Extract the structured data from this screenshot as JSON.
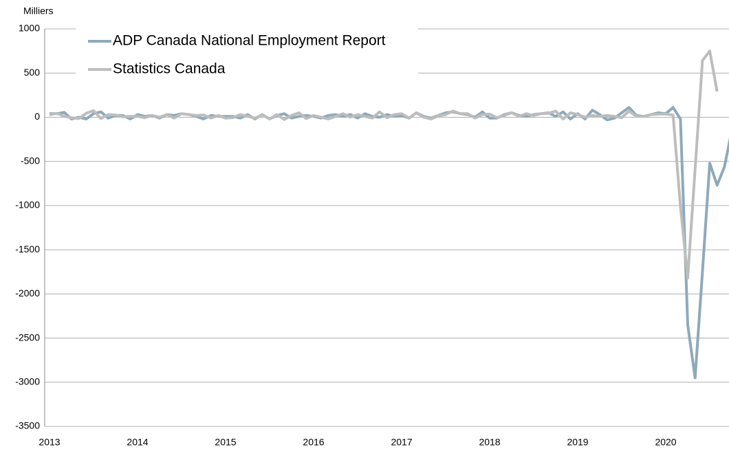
{
  "chart_data": {
    "type": "line",
    "y_label": "Milliers",
    "categories": [
      "2013",
      null,
      null,
      null,
      null,
      null,
      null,
      null,
      null,
      null,
      null,
      null,
      "2014",
      null,
      null,
      null,
      null,
      null,
      null,
      null,
      null,
      null,
      null,
      null,
      "2015",
      null,
      null,
      null,
      null,
      null,
      null,
      null,
      null,
      null,
      null,
      null,
      "2016",
      null,
      null,
      null,
      null,
      null,
      null,
      null,
      null,
      null,
      null,
      null,
      "2017",
      null,
      null,
      null,
      null,
      null,
      null,
      null,
      null,
      null,
      null,
      null,
      "2018",
      null,
      null,
      null,
      null,
      null,
      null,
      null,
      null,
      null,
      null,
      null,
      "2019",
      null,
      null,
      null,
      null,
      null,
      null,
      null,
      null,
      null,
      null,
      null,
      "2020",
      null,
      null,
      null,
      null,
      null,
      null,
      null,
      null,
      null
    ],
    "series": [
      {
        "name": "ADP Canada National Employment Report",
        "color": "#8eaab9",
        "values": [
          40,
          40,
          55,
          -20,
          0,
          -20,
          40,
          60,
          -10,
          20,
          20,
          -20,
          30,
          10,
          20,
          -10,
          30,
          20,
          40,
          30,
          10,
          -20,
          20,
          10,
          10,
          10,
          -10,
          30,
          -20,
          30,
          -20,
          20,
          40,
          -10,
          10,
          20,
          10,
          -10,
          20,
          30,
          10,
          30,
          -10,
          40,
          10,
          0,
          30,
          10,
          20,
          -10,
          50,
          10,
          -10,
          20,
          50,
          60,
          40,
          30,
          0,
          60,
          -10,
          -10,
          30,
          50,
          20,
          10,
          30,
          40,
          50,
          10,
          60,
          -20,
          40,
          -20,
          80,
          30,
          -30,
          -10,
          50,
          110,
          20,
          10,
          30,
          50,
          40,
          110,
          -20,
          -2350,
          -2950,
          -1750,
          -520,
          -770,
          -560,
          -150
        ]
      },
      {
        "name": "Statistics Canada",
        "color": "#bdbdbd",
        "values": [
          25,
          45,
          10,
          -5,
          -15,
          45,
          75,
          -15,
          30,
          25,
          5,
          10,
          10,
          -5,
          20,
          0,
          30,
          -10,
          40,
          30,
          20,
          25,
          -10,
          20,
          -10,
          -5,
          30,
          10,
          -10,
          25,
          -20,
          30,
          -25,
          20,
          50,
          -15,
          20,
          0,
          -20,
          10,
          40,
          0,
          30,
          10,
          -10,
          60,
          -5,
          30,
          40,
          -10,
          50,
          0,
          -20,
          15,
          30,
          70,
          40,
          40,
          -10,
          30,
          35,
          -5,
          20,
          50,
          10,
          40,
          20,
          40,
          45,
          70,
          -20,
          50,
          30,
          0,
          20,
          10,
          20,
          10,
          -5,
          70,
          10,
          10,
          30,
          35,
          35,
          25,
          -1010,
          -1820,
          -590,
          640,
          750,
          290,
          null,
          null
        ]
      }
    ],
    "ylim": [
      -3500,
      1000
    ],
    "yticks": [
      -3500,
      -3000,
      -2500,
      -2000,
      -1500,
      -1000,
      -500,
      0,
      500,
      1000
    ],
    "grid": true,
    "legend": "top-left"
  }
}
